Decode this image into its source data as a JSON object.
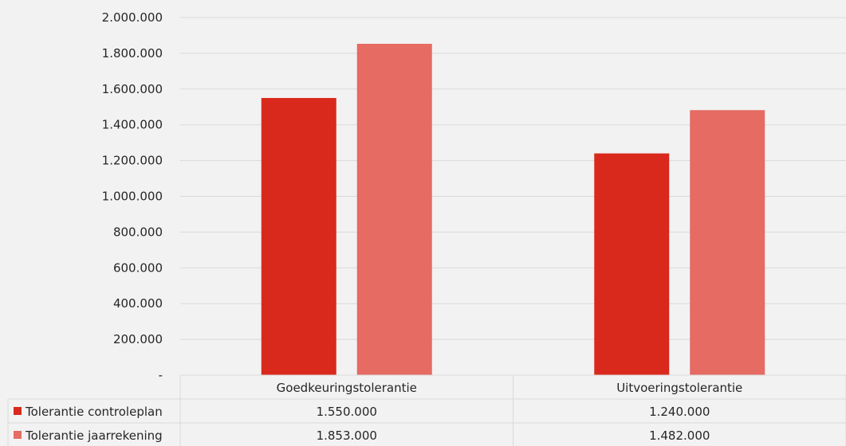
{
  "chart_data": {
    "type": "bar",
    "categories": [
      "Goedkeuringstolerantie",
      "Uitvoeringstolerantie"
    ],
    "series": [
      {
        "name": "Tolerantie controleplan",
        "values": [
          1550000,
          1240000
        ],
        "value_labels": [
          "1.550.000",
          "1.240.000"
        ],
        "color": "#d9291c"
      },
      {
        "name": "Tolerantie jaarrekening",
        "values": [
          1853000,
          1482000
        ],
        "value_labels": [
          "1.853.000",
          "1.482.000"
        ],
        "color": "#e56b63"
      }
    ],
    "ylim": [
      0,
      2000000
    ],
    "yticks": [
      0,
      200000,
      400000,
      600000,
      800000,
      1000000,
      1200000,
      1400000,
      1600000,
      1800000,
      2000000
    ],
    "ytick_labels": [
      "-",
      "200.000",
      "400.000",
      "600.000",
      "800.000",
      "1.000.000",
      "1.200.000",
      "1.400.000",
      "1.600.000",
      "1.800.000",
      "2.000.000"
    ],
    "grid": true,
    "legend": "data-table",
    "data_table": true,
    "colors": {
      "background": "#f2f2f2",
      "gridline": "#d9d9d9",
      "table_border": "#d9d9d9"
    }
  }
}
